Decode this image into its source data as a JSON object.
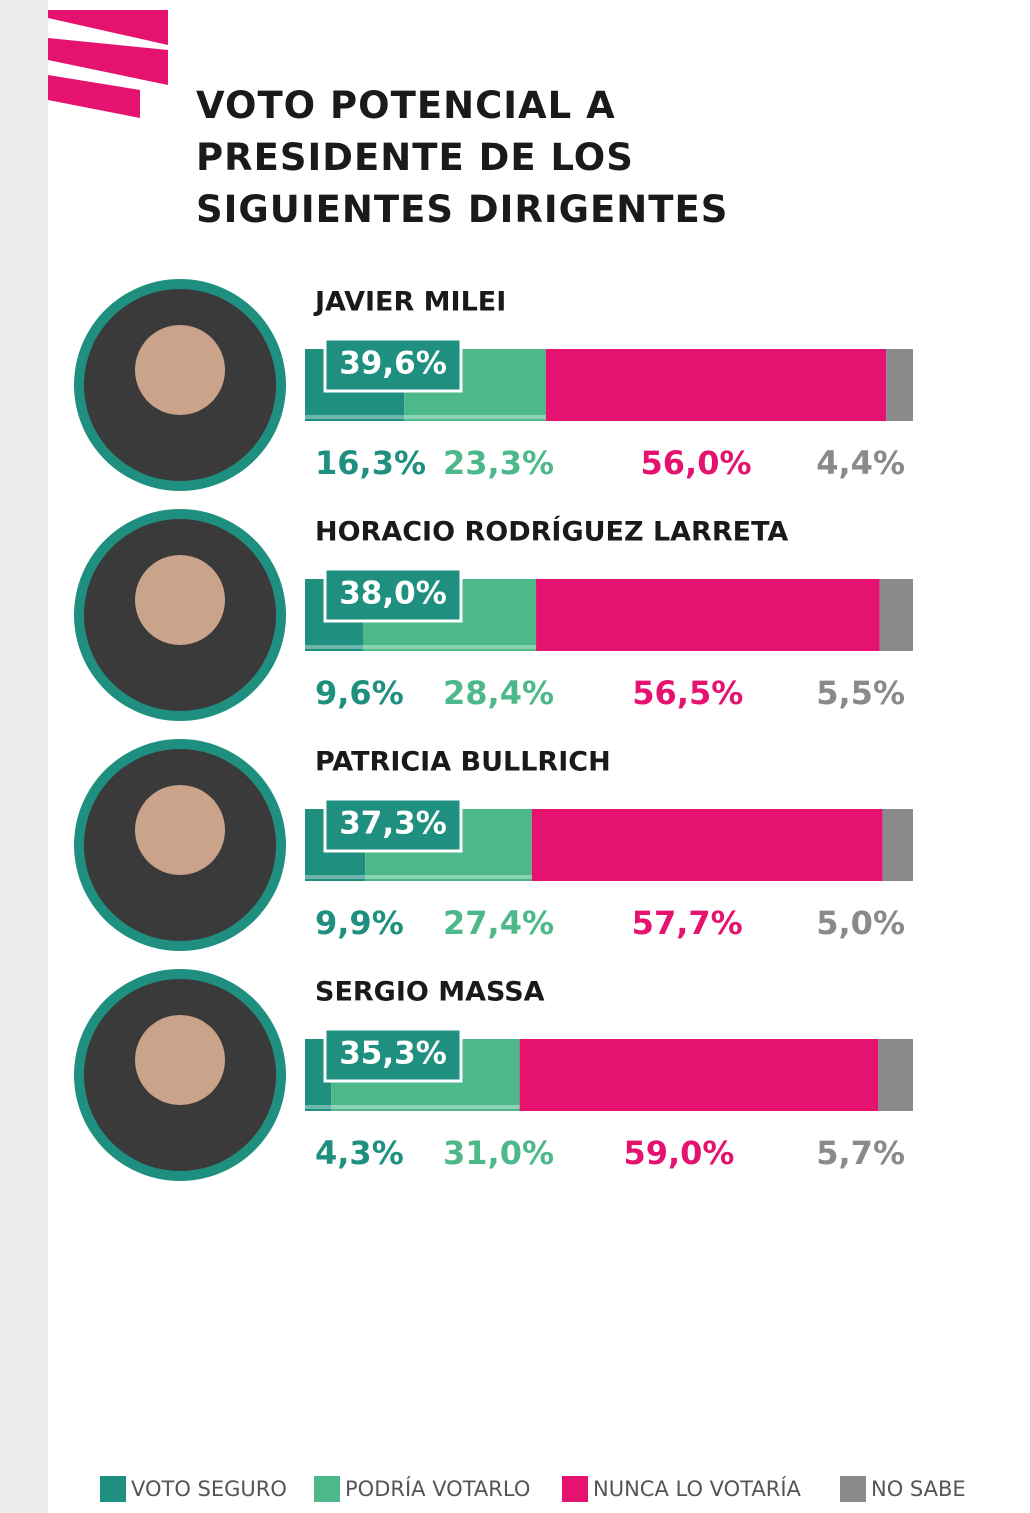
{
  "chart_data": {
    "type": "stacked-bar",
    "title": "VOTO POTENCIAL A PRESIDENTE DE LOS SIGUIENTES DIRIGENTES",
    "categories": [
      "JAVIER MILEI",
      "HORACIO RODRÍGUEZ LARRETA",
      "PATRICIA BULLRICH",
      "SERGIO MASSA"
    ],
    "series": [
      {
        "name": "VOTO SEGURO",
        "color": "#1f8f80",
        "values": [
          16.3,
          9.6,
          9.9,
          4.3
        ],
        "value_labels": [
          "16,3%",
          "9,6%",
          "9,9%",
          "4,3%"
        ]
      },
      {
        "name": "PODRÍA VOTARLO",
        "color": "#4db88a",
        "values": [
          23.3,
          28.4,
          27.4,
          31.0
        ],
        "value_labels": [
          "23,3%",
          "28,4%",
          "27,4%",
          "31,0%"
        ]
      },
      {
        "name": "NUNCA LO VOTARÍA",
        "color": "#e5136f",
        "values": [
          56.0,
          56.5,
          57.7,
          59.0
        ],
        "value_labels": [
          "56,0%",
          "56,5%",
          "57,7%",
          "59,0%"
        ]
      },
      {
        "name": "NO SABE",
        "color": "#8a8a8a",
        "values": [
          4.4,
          5.5,
          5.0,
          5.7
        ],
        "value_labels": [
          "4,4%",
          "5,5%",
          "5,0%",
          "5,7%"
        ]
      }
    ],
    "combined": {
      "values": [
        39.6,
        38.0,
        37.3,
        35.3
      ],
      "value_labels": [
        "39,6%",
        "38,0%",
        "37,3%",
        "35,3%"
      ]
    },
    "xlim": [
      0,
      100
    ]
  }
}
